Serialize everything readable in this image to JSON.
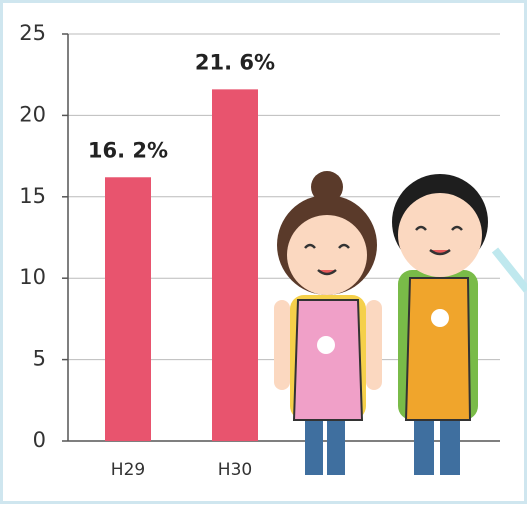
{
  "chart_data": {
    "type": "bar",
    "categories": [
      "H29",
      "H30"
    ],
    "values": [
      16.2,
      21.6
    ],
    "value_labels": [
      "16. 2%",
      "21. 6%"
    ],
    "color": "#e8546e",
    "ylim": [
      0,
      25
    ],
    "yticks": [
      0,
      5,
      10,
      15,
      20,
      25
    ],
    "grid": true
  }
}
